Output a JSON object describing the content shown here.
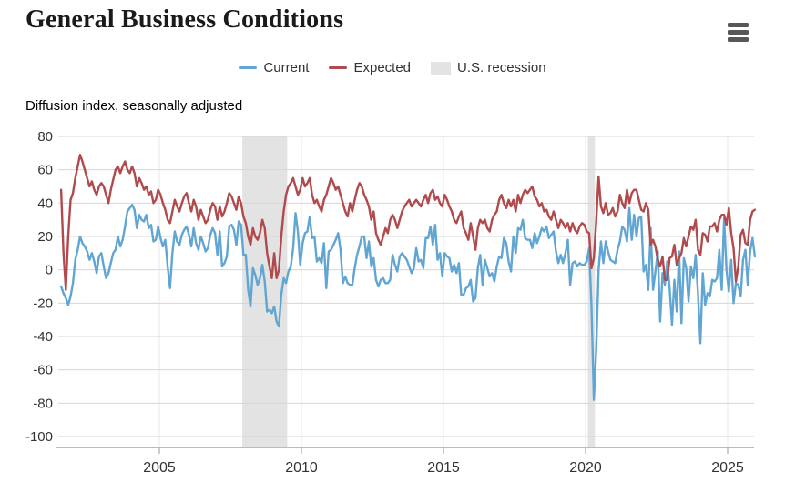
{
  "header": {
    "title": "General Business Conditions"
  },
  "legend": {
    "items": [
      {
        "label": "Current",
        "color": "#61a5d3",
        "swatch": "line"
      },
      {
        "label": "Expected",
        "color": "#b14a4c",
        "swatch": "line"
      },
      {
        "label": "U.S. recession",
        "color": "#e3e3e3",
        "swatch": "band"
      }
    ]
  },
  "chart_data": {
    "type": "line",
    "title": "General Business Conditions",
    "ylabel": "Diffusion index, seasonally adjusted",
    "frequency": "monthly",
    "x_start_decimal_year": 2001.542,
    "x_end_decimal_year": 2025.958,
    "x_ticks": [
      2005,
      2010,
      2015,
      2020,
      2025
    ],
    "y_ticks": [
      80,
      60,
      40,
      20,
      0,
      -20,
      -40,
      -60,
      -80,
      -100
    ],
    "ylim": [
      -106,
      80
    ],
    "grid": true,
    "legend_position": "top",
    "recessions": [
      {
        "label": "U.S. recession",
        "start": 2007.92,
        "end": 2009.5
      },
      {
        "label": "U.S. recession",
        "start": 2020.08,
        "end": 2020.33
      }
    ],
    "colors": {
      "current": "#61a5d3",
      "expected": "#b14a4c",
      "recession_band": "#e3e3e3",
      "gridline": "#d6d6d6",
      "vertical_gridline": "#e7e7e7",
      "axis_line": "#b6bcc1",
      "label": "#333333"
    },
    "series": [
      {
        "name": "Current",
        "color": "#61a5d3",
        "values": [
          -10,
          -14,
          -17,
          -21,
          -16,
          -8,
          6,
          12,
          20,
          16,
          14,
          11,
          6,
          10,
          5,
          -2,
          8,
          10,
          2,
          -5,
          -2,
          4,
          10,
          12,
          20,
          14,
          18,
          26,
          35,
          37,
          39,
          36,
          25,
          33,
          30,
          29,
          33,
          25,
          27,
          17,
          18,
          26,
          19,
          14,
          18,
          2,
          -11,
          10,
          23,
          17,
          15,
          21,
          24,
          26,
          21,
          14,
          25,
          16,
          12,
          20,
          16,
          11,
          13,
          21,
          25,
          22,
          9,
          23,
          2,
          4,
          8,
          26,
          27,
          24,
          15,
          29,
          27,
          9,
          9,
          -12,
          -22,
          1,
          -3,
          -9,
          -5,
          3,
          -7,
          -25,
          -24,
          -26,
          -22,
          -31,
          -34,
          -15,
          -5,
          -8,
          -1,
          2,
          13,
          34,
          23,
          3,
          16,
          22,
          23,
          32,
          19,
          20,
          5,
          7,
          4,
          16,
          -11,
          11,
          12,
          15,
          18,
          22,
          12,
          -8,
          -4,
          -8,
          -9,
          -9,
          1,
          9,
          14,
          20,
          20,
          7,
          17,
          2,
          7,
          -6,
          -10,
          -6,
          -5,
          -8,
          -8,
          -6,
          9,
          3,
          -1,
          8,
          10,
          8,
          6,
          2,
          -2,
          1,
          13,
          5,
          6,
          1,
          19,
          19,
          26,
          15,
          27,
          6,
          10,
          -4,
          10,
          8,
          7,
          -1,
          3,
          -2,
          4,
          -15,
          -15,
          -11,
          -10,
          -6,
          -19,
          -17,
          1,
          9,
          -9,
          6,
          1,
          -4,
          -2,
          -7,
          2,
          8,
          7,
          19,
          16,
          5,
          -1,
          20,
          10,
          25,
          24,
          30,
          19,
          18,
          18,
          13,
          22,
          16,
          20,
          25,
          23,
          26,
          19,
          21,
          23,
          11,
          4,
          9,
          4,
          10,
          18,
          -9,
          4,
          5,
          2,
          4,
          3,
          3,
          5,
          13,
          -22,
          -78,
          -48,
          0,
          17,
          4,
          17,
          11,
          6,
          5,
          4,
          12,
          17,
          26,
          24,
          17,
          37,
          18,
          33,
          20,
          31,
          32,
          -1,
          3,
          -12,
          25,
          -12,
          -1,
          11,
          -31,
          -2,
          -9,
          5,
          -11,
          -33,
          -6,
          -25,
          11,
          -32,
          7,
          1,
          -19,
          2,
          -5,
          9,
          -15,
          -44,
          -2,
          -21,
          -14,
          -16,
          -6,
          -7,
          -5,
          12,
          -12,
          31,
          0,
          -13,
          6,
          -20,
          -8,
          -9,
          -16,
          6,
          12,
          -9,
          11,
          19,
          8
        ]
      },
      {
        "name": "Expected",
        "color": "#b14a4c",
        "values": [
          48,
          10,
          -12,
          20,
          42,
          46,
          55,
          62,
          69,
          65,
          60,
          55,
          50,
          53,
          48,
          45,
          50,
          52,
          50,
          45,
          40,
          48,
          54,
          60,
          62,
          58,
          62,
          65,
          60,
          58,
          62,
          58,
          50,
          55,
          52,
          48,
          50,
          45,
          47,
          40,
          42,
          48,
          45,
          40,
          36,
          30,
          28,
          35,
          42,
          38,
          35,
          40,
          44,
          46,
          40,
          35,
          42,
          38,
          30,
          36,
          32,
          28,
          30,
          36,
          40,
          38,
          30,
          38,
          32,
          35,
          40,
          46,
          44,
          40,
          36,
          44,
          40,
          32,
          28,
          20,
          15,
          25,
          20,
          18,
          22,
          30,
          25,
          10,
          2,
          -5,
          10,
          -5,
          0,
          20,
          35,
          45,
          50,
          52,
          55,
          50,
          45,
          48,
          55,
          50,
          52,
          55,
          45,
          40,
          42,
          38,
          35,
          42,
          45,
          50,
          55,
          52,
          48,
          50,
          45,
          40,
          35,
          32,
          40,
          35,
          42,
          48,
          52,
          50,
          45,
          42,
          38,
          30,
          35,
          22,
          18,
          15,
          20,
          25,
          22,
          30,
          33,
          30,
          25,
          30,
          35,
          38,
          40,
          42,
          38,
          40,
          42,
          40,
          38,
          42,
          45,
          40,
          46,
          48,
          42,
          44,
          40,
          38,
          45,
          42,
          38,
          35,
          30,
          28,
          32,
          35,
          25,
          22,
          18,
          28,
          20,
          12,
          25,
          30,
          28,
          30,
          25,
          23,
          30,
          33,
          35,
          42,
          45,
          40,
          37,
          42,
          38,
          42,
          35,
          45,
          40,
          45,
          48,
          46,
          48,
          50,
          44,
          42,
          38,
          40,
          35,
          36,
          32,
          30,
          35,
          30,
          25,
          30,
          28,
          25,
          28,
          23,
          28,
          24,
          22,
          26,
          28,
          27,
          23,
          22,
          1,
          7,
          29,
          56,
          38,
          34,
          40,
          33,
          34,
          37,
          32,
          35,
          45,
          40,
          37,
          48,
          40,
          46,
          48,
          48,
          42,
          36,
          35,
          40,
          36,
          15,
          18,
          14,
          6,
          2,
          8,
          -6,
          -6,
          7,
          8,
          15,
          3,
          7,
          10,
          19,
          14,
          20,
          26,
          24,
          30,
          12,
          9,
          22,
          21,
          17,
          26,
          26,
          28,
          23,
          30,
          33,
          33,
          27,
          37,
          22,
          13,
          -7,
          2,
          21,
          24,
          16,
          15,
          30,
          35,
          36
        ]
      }
    ]
  }
}
